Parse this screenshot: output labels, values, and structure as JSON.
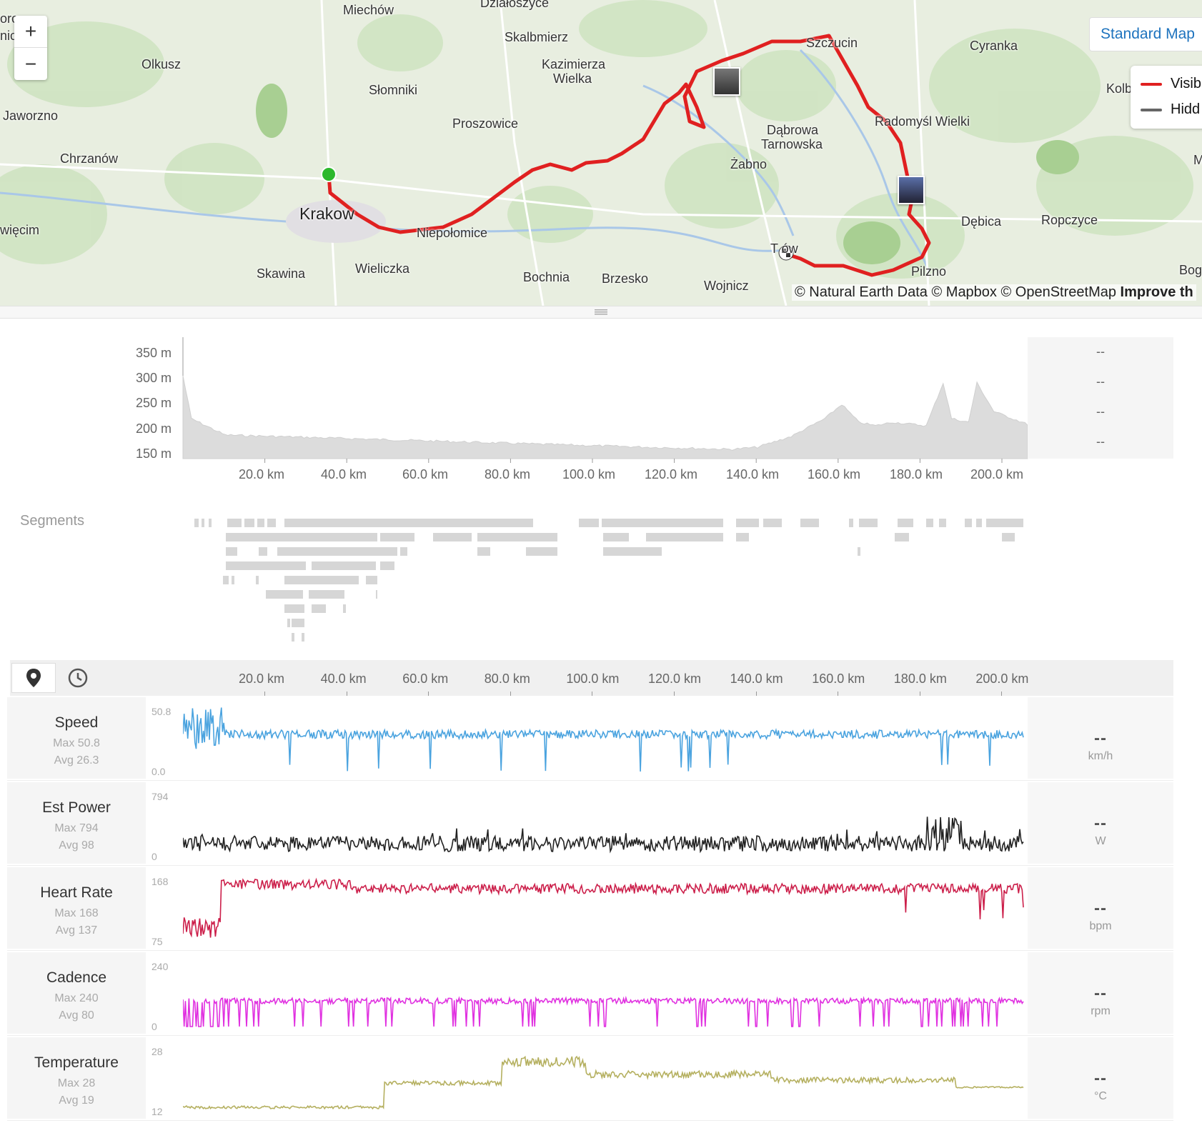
{
  "map": {
    "zoom_in": "+",
    "zoom_out": "−",
    "style_button": "Standard Map",
    "legend": [
      {
        "label": "Visib",
        "color": "#e02020"
      },
      {
        "label": "Hidd",
        "color": "#666666"
      }
    ],
    "route_color": "#e02020",
    "start_color": "#2db82d",
    "labels": {
      "miechow": "Miechów",
      "dzialoszyce": "Działoszyce",
      "skalbmierz": "Skalbmierz",
      "kazimierza": "Kazimierza",
      "wielka": "Wielka",
      "olkusz": "Olkusz",
      "slomniki": "Słomniki",
      "proszowice": "Proszowice",
      "jaworzno": "Jaworzno",
      "chrzanow": "Chrzanów",
      "krakow": "Krakow",
      "niepolomice": "Niepołomice",
      "wieliczka": "Wieliczka",
      "skawina": "Skawina",
      "wiecim": "więcim",
      "bochnia": "Bochnia",
      "brzesko": "Brzesko",
      "wojnicz": "Wojnicz",
      "zabno": "Żabno",
      "dabrowa": "Dąbrowa",
      "tarnowska": "Tarnowska",
      "szczucin": "Szczucin",
      "cyranka": "Cyranka",
      "radomysl": "Radomyśl Wielki",
      "debica": "Dębica",
      "ropczyce": "Ropczyce",
      "pilzno": "Pilzno",
      "tarnow": "T   ów",
      "kolb": "Kolb",
      "bog": "Bog",
      "m": "M",
      "edge1": "oro",
      "edge2": "nic"
    },
    "attribution_text": "© Natural Earth Data © Mapbox © OpenStreetMap ",
    "attribution_link": "Improve th"
  },
  "elevation": {
    "y_ticks": [
      "350 m",
      "300 m",
      "250 m",
      "200 m",
      "150 m"
    ],
    "x_ticks": [
      "20.0 km",
      "40.0 km",
      "60.0 km",
      "80.0 km",
      "100.0 km",
      "120.0 km",
      "140.0 km",
      "160.0 km",
      "180.0 km",
      "200.0 km"
    ],
    "side_values": [
      "--",
      "--",
      "--",
      "--"
    ]
  },
  "segments": {
    "title": "Segments"
  },
  "streams_header": {
    "distance_icon": "map-pin-icon",
    "time_icon": "clock-icon",
    "x_ticks": [
      "20.0 km",
      "40.0 km",
      "60.0 km",
      "80.0 km",
      "100.0 km",
      "120.0 km",
      "140.0 km",
      "160.0 km",
      "180.0 km",
      "200.0 km"
    ]
  },
  "streams": [
    {
      "name": "Speed",
      "max_label": "Max 50.8",
      "avg_label": "Avg 26.3",
      "axis_max": "50.8",
      "axis_min": "0.0",
      "value": "--",
      "unit": "km/h",
      "color": "#4aa3df"
    },
    {
      "name": "Est Power",
      "max_label": "Max 794",
      "avg_label": "Avg 98",
      "axis_max": "794",
      "axis_min": "0",
      "value": "--",
      "unit": "W",
      "color": "#222222"
    },
    {
      "name": "Heart Rate",
      "max_label": "Max 168",
      "avg_label": "Avg 137",
      "axis_max": "168",
      "axis_min": "75",
      "value": "--",
      "unit": "bpm",
      "color": "#cc1f4a"
    },
    {
      "name": "Cadence",
      "max_label": "Max 240",
      "avg_label": "Avg 80",
      "axis_max": "240",
      "axis_min": "0",
      "value": "--",
      "unit": "rpm",
      "color": "#e030e0"
    },
    {
      "name": "Temperature",
      "max_label": "Max 28",
      "avg_label": "Avg 19",
      "axis_max": "28",
      "axis_min": "12",
      "value": "--",
      "unit": "°C",
      "color": "#b5b060"
    }
  ]
}
